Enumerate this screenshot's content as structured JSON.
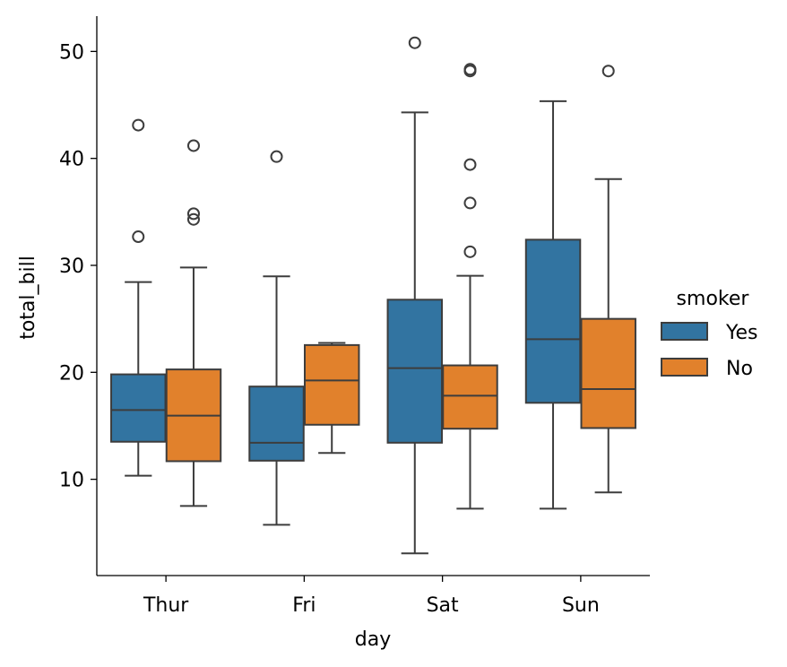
{
  "chart_data": {
    "type": "box",
    "xlabel": "day",
    "ylabel": "total_bill",
    "categories": [
      "Thur",
      "Fri",
      "Sat",
      "Sun"
    ],
    "ylim": [
      1.0,
      53.3
    ],
    "yticks": [
      10,
      20,
      30,
      40,
      50
    ],
    "grid": false,
    "legend": {
      "title": "smoker",
      "placement": "right"
    },
    "series": [
      {
        "name": "Yes",
        "color": "#3274a1",
        "boxes": [
          {
            "whisker_low": 10.34,
            "q1": 13.51,
            "median": 16.47,
            "q3": 19.81,
            "whisker_high": 28.44,
            "outliers": [
              32.68,
              43.11
            ]
          },
          {
            "whisker_low": 5.75,
            "q1": 11.74,
            "median": 13.42,
            "q3": 18.67,
            "whisker_high": 28.97,
            "outliers": [
              40.17
            ]
          },
          {
            "whisker_low": 3.07,
            "q1": 13.42,
            "median": 20.39,
            "q3": 26.79,
            "whisker_high": 44.3,
            "outliers": [
              50.81
            ]
          },
          {
            "whisker_low": 7.25,
            "q1": 17.15,
            "median": 23.1,
            "q3": 32.4,
            "whisker_high": 45.35,
            "outliers": []
          }
        ]
      },
      {
        "name": "No",
        "color": "#e1812c",
        "boxes": [
          {
            "whisker_low": 7.51,
            "q1": 11.69,
            "median": 15.95,
            "q3": 20.27,
            "whisker_high": 29.8,
            "outliers": [
              34.3,
              34.83,
              41.19
            ]
          },
          {
            "whisker_low": 12.46,
            "q1": 15.1,
            "median": 19.24,
            "q3": 22.55,
            "whisker_high": 22.75,
            "outliers": []
          },
          {
            "whisker_low": 7.25,
            "q1": 14.73,
            "median": 17.82,
            "q3": 20.65,
            "whisker_high": 29.03,
            "outliers": [
              31.27,
              35.83,
              39.42,
              48.17,
              48.33
            ]
          },
          {
            "whisker_low": 8.77,
            "q1": 14.79,
            "median": 18.43,
            "q3": 25.0,
            "whisker_high": 38.07,
            "outliers": [
              48.17
            ]
          }
        ]
      }
    ]
  }
}
